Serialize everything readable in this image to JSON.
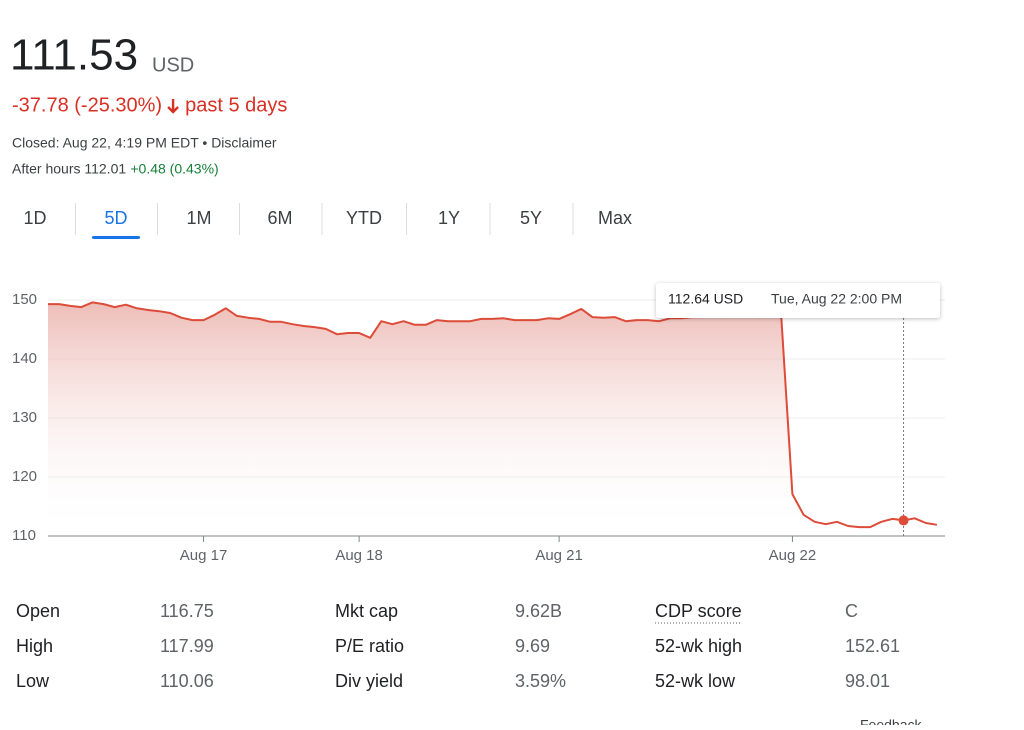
{
  "header": {
    "price": "111.53",
    "currency": "USD",
    "change": "-37.78 (-25.30%)",
    "period": "past 5 days",
    "closed": "Closed: Aug 22, 4:19 PM EDT • Disclaimer",
    "after_hours": "After hours 112.01",
    "after_change": "+0.48 (0.43%)"
  },
  "tabs": [
    "1D",
    "5D",
    "1M",
    "6M",
    "YTD",
    "1Y",
    "5Y",
    "Max"
  ],
  "selected_tab": "5D",
  "chart_data": {
    "type": "line",
    "x": [
      0,
      1,
      2,
      3,
      4,
      5,
      6,
      7,
      8,
      9,
      10,
      11,
      12,
      13,
      14,
      15,
      16,
      17,
      18,
      19,
      20,
      21,
      22,
      23,
      24,
      25,
      26,
      27,
      28,
      29,
      30,
      31,
      32,
      33,
      34,
      35,
      36,
      37,
      38,
      39,
      40,
      41,
      42,
      43,
      44,
      45,
      46,
      47,
      48,
      49,
      50,
      51,
      52,
      53,
      54,
      55,
      56,
      57,
      58,
      59,
      60,
      61,
      62,
      63,
      64,
      65,
      66,
      67,
      68,
      69,
      70,
      71,
      72,
      73,
      74,
      75,
      76,
      77,
      78,
      79,
      80
    ],
    "series": [
      {
        "color": "#dd4b39",
        "values": [
          149.3,
          149.3,
          149,
          148.8,
          149.6,
          149.3,
          148.8,
          149.2,
          148.6,
          148.3,
          148.1,
          147.8,
          147,
          146.6,
          146.6,
          147.5,
          148.6,
          147.3,
          147,
          146.8,
          146.3,
          146.3,
          145.9,
          145.6,
          145.4,
          145.1,
          144.2,
          144.4,
          144.4,
          143.6,
          146.4,
          145.9,
          146.4,
          145.8,
          145.8,
          146.6,
          146.4,
          146.4,
          146.4,
          146.8,
          146.8,
          146.9,
          146.6,
          146.6,
          146.6,
          146.9,
          146.8,
          147.6,
          148.5,
          147.1,
          147,
          147.1,
          146.4,
          146.6,
          146.6,
          146.4,
          146.9,
          146.9,
          147.1,
          147.1,
          147.3,
          147.1,
          147.3,
          147.3,
          147.1,
          147.3,
          147.1,
          117.1,
          113.6,
          112.4,
          112,
          112.4,
          111.7,
          111.5,
          111.5,
          112.4,
          112.9,
          112.64,
          113,
          112.2,
          111.9
        ]
      }
    ],
    "xlim": [
      0,
      81
    ],
    "ylim": [
      110,
      150
    ],
    "yticks": [
      110,
      120,
      130,
      140,
      150
    ],
    "xticks": [
      {
        "value": 14,
        "label": "Aug 17"
      },
      {
        "value": 28,
        "label": "Aug 18"
      },
      {
        "value": 46,
        "label": "Aug 21"
      },
      {
        "value": 67,
        "label": "Aug 22"
      }
    ],
    "grid": true,
    "tooltip": {
      "index": 77,
      "label": "112.64 USD",
      "date": "Tue, Aug 22 2:00 PM"
    }
  },
  "stats": [
    [
      [
        "Open",
        "116.75"
      ],
      [
        "Mkt cap",
        "9.62B"
      ],
      [
        "CDP score",
        "C"
      ]
    ],
    [
      [
        "High",
        "117.99"
      ],
      [
        "P/E ratio",
        "9.69"
      ],
      [
        "52-wk high",
        "152.61"
      ]
    ],
    [
      [
        "Low",
        "110.06"
      ],
      [
        "Div yield",
        "3.59%"
      ],
      [
        "52-wk low",
        "98.01"
      ]
    ]
  ],
  "footer": "Feedback"
}
